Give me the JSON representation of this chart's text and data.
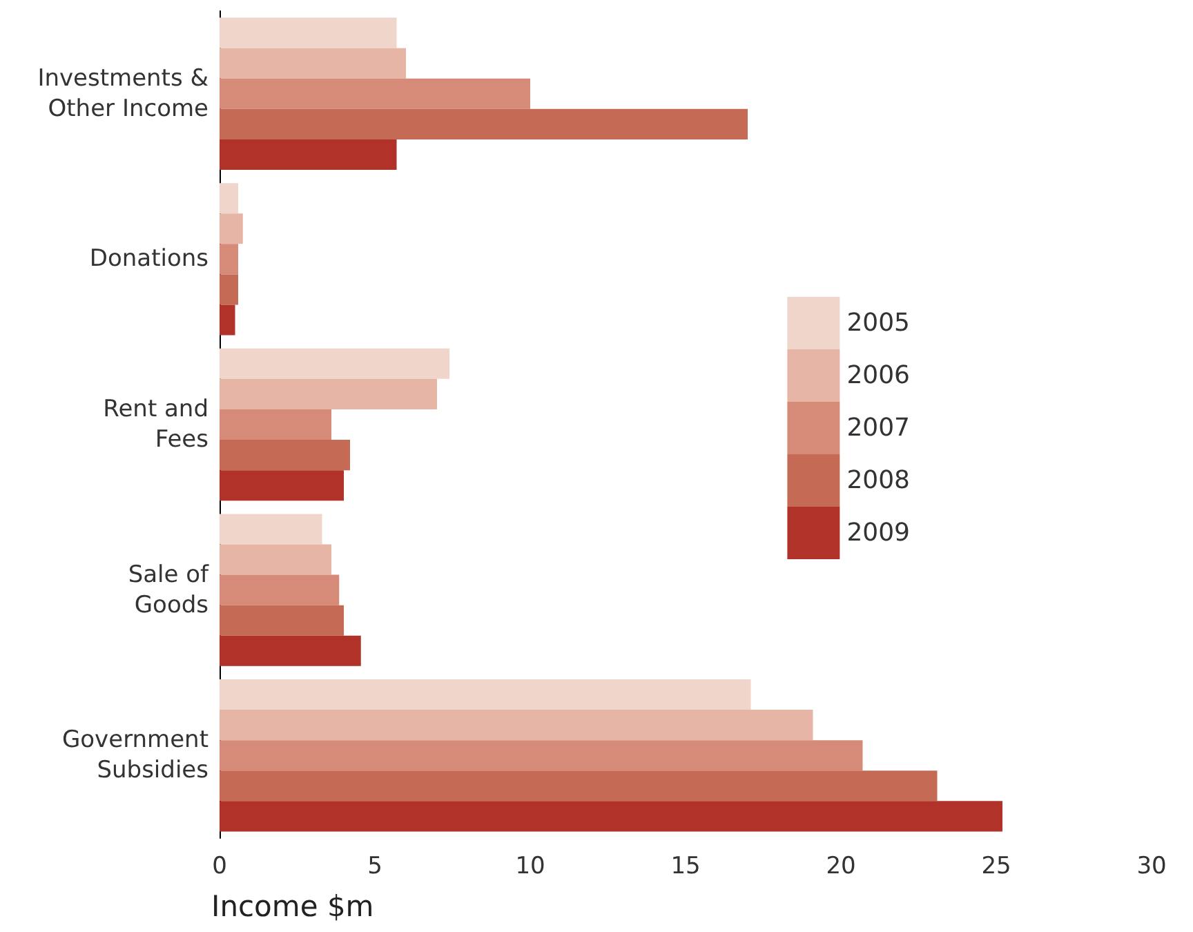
{
  "chart_data": {
    "type": "bar",
    "orientation": "horizontal",
    "xlabel": "Income $m",
    "categories": [
      "Investments &\nOther Income",
      "Donations",
      "Rent and\nFees",
      "Sale of\nGoods",
      "Government\nSubsidies"
    ],
    "series": [
      {
        "name": "2005",
        "color": "#f0d5cb",
        "values": [
          5.7,
          0.6,
          7.4,
          3.3,
          17.1
        ]
      },
      {
        "name": "2006",
        "color": "#e6b5a5",
        "values": [
          6.0,
          0.75,
          7.0,
          3.6,
          19.1
        ]
      },
      {
        "name": "2007",
        "color": "#d68b78",
        "values": [
          10.0,
          0.6,
          3.6,
          3.85,
          20.7
        ]
      },
      {
        "name": "2008",
        "color": "#c56a55",
        "values": [
          17.0,
          0.6,
          4.2,
          4.0,
          23.1
        ]
      },
      {
        "name": "2009",
        "color": "#b03228",
        "values": [
          5.7,
          0.5,
          4.0,
          4.55,
          25.2
        ]
      }
    ],
    "xlim": [
      0,
      30
    ],
    "xticks": [
      0,
      5,
      10,
      15,
      20,
      25,
      30
    ],
    "grid": false,
    "legend": "right"
  }
}
